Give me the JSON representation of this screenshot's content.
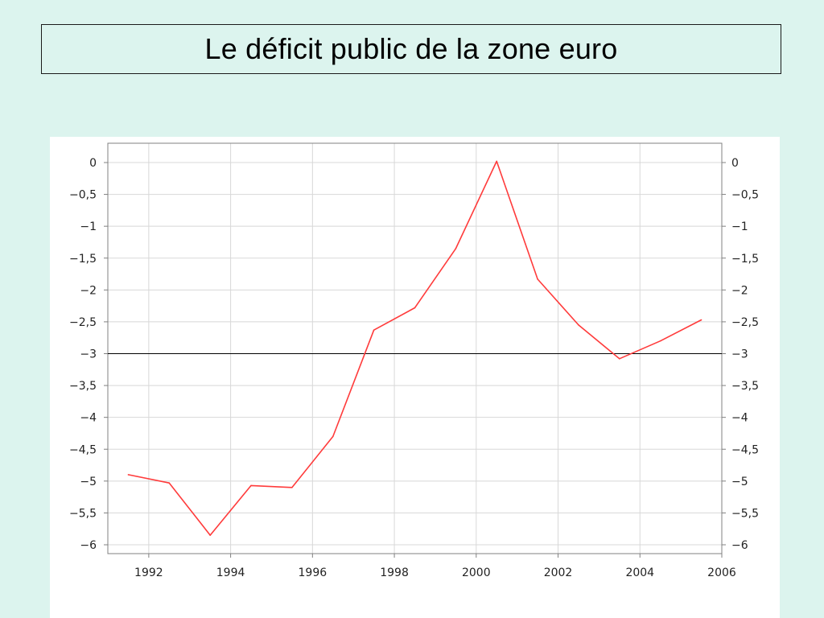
{
  "slide": {
    "title": "Le déficit public de la zone euro"
  },
  "chart_data": {
    "type": "line",
    "title": "",
    "xlabel": "",
    "ylabel": "",
    "x": [
      1991.5,
      1992.5,
      1993.5,
      1994.5,
      1995.5,
      1996.5,
      1997.5,
      1998.5,
      1999.5,
      2000.5,
      2001.5,
      2002.5,
      2003.5,
      2004.5,
      2005.5
    ],
    "series": [
      {
        "color": "#ff3b3b",
        "values": [
          -4.9,
          -5.03,
          -5.85,
          -5.07,
          -5.1,
          -4.3,
          -2.63,
          -2.28,
          -1.35,
          0.02,
          -1.83,
          -2.55,
          -3.08,
          -2.8,
          -2.47
        ]
      }
    ],
    "reference_line": {
      "y": -3,
      "color": "#000000"
    },
    "xlim": [
      1991,
      2006
    ],
    "ylim": [
      -6,
      0
    ],
    "x_ticks": [
      1992,
      1994,
      1996,
      1998,
      2000,
      2002,
      2004,
      2006
    ],
    "x_tick_labels": [
      "1992",
      "1994",
      "1996",
      "1998",
      "2000",
      "2002",
      "2004",
      "2006"
    ],
    "y_ticks": [
      0,
      -0.5,
      -1,
      -1.5,
      -2,
      -2.5,
      -3,
      -3.5,
      -4,
      -4.5,
      -5,
      -5.5,
      -6
    ],
    "y_tick_labels": [
      "0",
      "−0,5",
      "−1",
      "−1,5",
      "−2",
      "−2,5",
      "−3",
      "−3,5",
      "−4",
      "−4,5",
      "−5",
      "−5,5",
      "−6"
    ],
    "grid": true,
    "y_axis_both_sides": true,
    "legend": "none",
    "colors": {
      "grid": "#d8d8d8",
      "axis": "#808080",
      "series": "#ff3b3b",
      "reference": "#000000"
    }
  }
}
